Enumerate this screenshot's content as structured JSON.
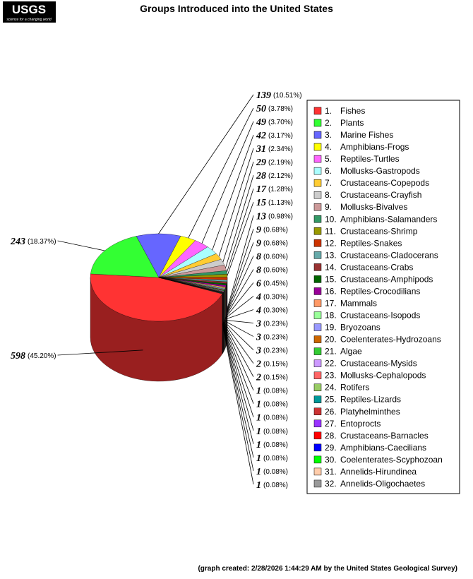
{
  "logo": {
    "name": "USGS",
    "tagline": "science for a changing world"
  },
  "chart_data": {
    "type": "pie",
    "title": "Groups Introduced into the United States",
    "categories": [
      "Fishes",
      "Plants",
      "Marine Fishes",
      "Amphibians-Frogs",
      "Reptiles-Turtles",
      "Mollusks-Gastropods",
      "Crustaceans-Copepods",
      "Crustaceans-Crayfish",
      "Mollusks-Bivalves",
      "Amphibians-Salamanders",
      "Crustaceans-Shrimp",
      "Reptiles-Snakes",
      "Crustaceans-Cladocerans",
      "Crustaceans-Crabs",
      "Crustaceans-Amphipods",
      "Reptiles-Crocodilians",
      "Mammals",
      "Crustaceans-Isopods",
      "Bryozoans",
      "Coelenterates-Hydrozoans",
      "Algae",
      "Crustaceans-Mysids",
      "Mollusks-Cephalopods",
      "Rotifers",
      "Reptiles-Lizards",
      "Platyhelminthes",
      "Entoprocts",
      "Crustaceans-Barnacles",
      "Amphibians-Caecilians",
      "Coelenterates-Scyphozoan",
      "Annelids-Hirundinea",
      "Annelids-Oligochaetes"
    ],
    "legend_numbers": [
      "1.",
      "2.",
      "3.",
      "4.",
      "5.",
      "6.",
      "7.",
      "8.",
      "9.",
      "10.",
      "11.",
      "12.",
      "13.",
      "14.",
      "15.",
      "16.",
      "17.",
      "18.",
      "19.",
      "20.",
      "21.",
      "22.",
      "23.",
      "24.",
      "25.",
      "26.",
      "27.",
      "28.",
      "29.",
      "30.",
      "31.",
      "32."
    ],
    "values": [
      598,
      243,
      139,
      50,
      49,
      42,
      31,
      29,
      28,
      17,
      15,
      13,
      9,
      9,
      8,
      8,
      6,
      4,
      4,
      3,
      3,
      3,
      2,
      2,
      1,
      1,
      1,
      1,
      1,
      1,
      1,
      1
    ],
    "percent_labels": [
      "(45.20%)",
      "(18.37%)",
      "(10.51%)",
      "(3.78%)",
      "(3.70%)",
      "(3.17%)",
      "(2.34%)",
      "(2.19%)",
      "(2.12%)",
      "(1.28%)",
      "(1.13%)",
      "(0.98%)",
      "(0.68%)",
      "(0.68%)",
      "(0.60%)",
      "(0.60%)",
      "(0.45%)",
      "(0.30%)",
      "(0.30%)",
      "(0.23%)",
      "(0.23%)",
      "(0.23%)",
      "(0.15%)",
      "(0.15%)",
      "(0.08%)",
      "(0.08%)",
      "(0.08%)",
      "(0.08%)",
      "(0.08%)",
      "(0.08%)",
      "(0.08%)",
      "(0.08%)"
    ],
    "colors": [
      "#ff3333",
      "#33ff33",
      "#6666ff",
      "#ffff00",
      "#ff66ff",
      "#aaffff",
      "#ffcc33",
      "#cccccc",
      "#cc9999",
      "#339966",
      "#999900",
      "#cc3300",
      "#66aaaa",
      "#993333",
      "#006600",
      "#990099",
      "#ff9966",
      "#99ff99",
      "#9999ff",
      "#cc6600",
      "#33cc33",
      "#cc99ff",
      "#ff6666",
      "#99cc66",
      "#009999",
      "#cc3333",
      "#9933ff",
      "#ff0000",
      "#0000ff",
      "#00ff00",
      "#ffccaa",
      "#999999"
    ],
    "footer": "(graph created: 2/28/2026 1:44:29 AM by the United States Geological Survey)"
  }
}
